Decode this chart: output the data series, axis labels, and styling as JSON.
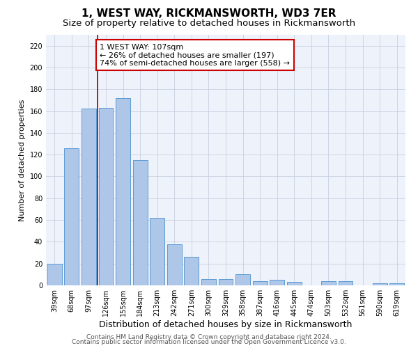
{
  "title": "1, WEST WAY, RICKMANSWORTH, WD3 7ER",
  "subtitle": "Size of property relative to detached houses in Rickmansworth",
  "xlabel": "Distribution of detached houses by size in Rickmansworth",
  "ylabel": "Number of detached properties",
  "categories": [
    "39sqm",
    "68sqm",
    "97sqm",
    "126sqm",
    "155sqm",
    "184sqm",
    "213sqm",
    "242sqm",
    "271sqm",
    "300sqm",
    "329sqm",
    "358sqm",
    "387sqm",
    "416sqm",
    "445sqm",
    "474sqm",
    "503sqm",
    "532sqm",
    "561sqm",
    "590sqm",
    "619sqm"
  ],
  "values": [
    20,
    126,
    162,
    163,
    172,
    115,
    62,
    38,
    26,
    6,
    6,
    10,
    4,
    5,
    3,
    0,
    4,
    4,
    0,
    2,
    2
  ],
  "bar_color": "#aec6e8",
  "bar_edgecolor": "#5b9bd5",
  "annotation_line1": "1 WEST WAY: 107sqm",
  "annotation_line2": "← 26% of detached houses are smaller (197)",
  "annotation_line3": "74% of semi-detached houses are larger (558) →",
  "annotation_box_facecolor": "#ffffff",
  "annotation_box_edgecolor": "#cc0000",
  "vline_color": "#cc0000",
  "ylim": [
    0,
    230
  ],
  "yticks": [
    0,
    20,
    40,
    60,
    80,
    100,
    120,
    140,
    160,
    180,
    200,
    220
  ],
  "footnote1": "Contains HM Land Registry data © Crown copyright and database right 2024.",
  "footnote2": "Contains public sector information licensed under the Open Government Licence v3.0.",
  "title_fontsize": 11,
  "subtitle_fontsize": 9.5,
  "xlabel_fontsize": 9,
  "ylabel_fontsize": 8,
  "tick_fontsize": 7,
  "annotation_fontsize": 8,
  "footnote_fontsize": 6.5,
  "background_color": "#eef2fa",
  "grid_color": "#c8d0e0",
  "property_bar_index": 2.5
}
